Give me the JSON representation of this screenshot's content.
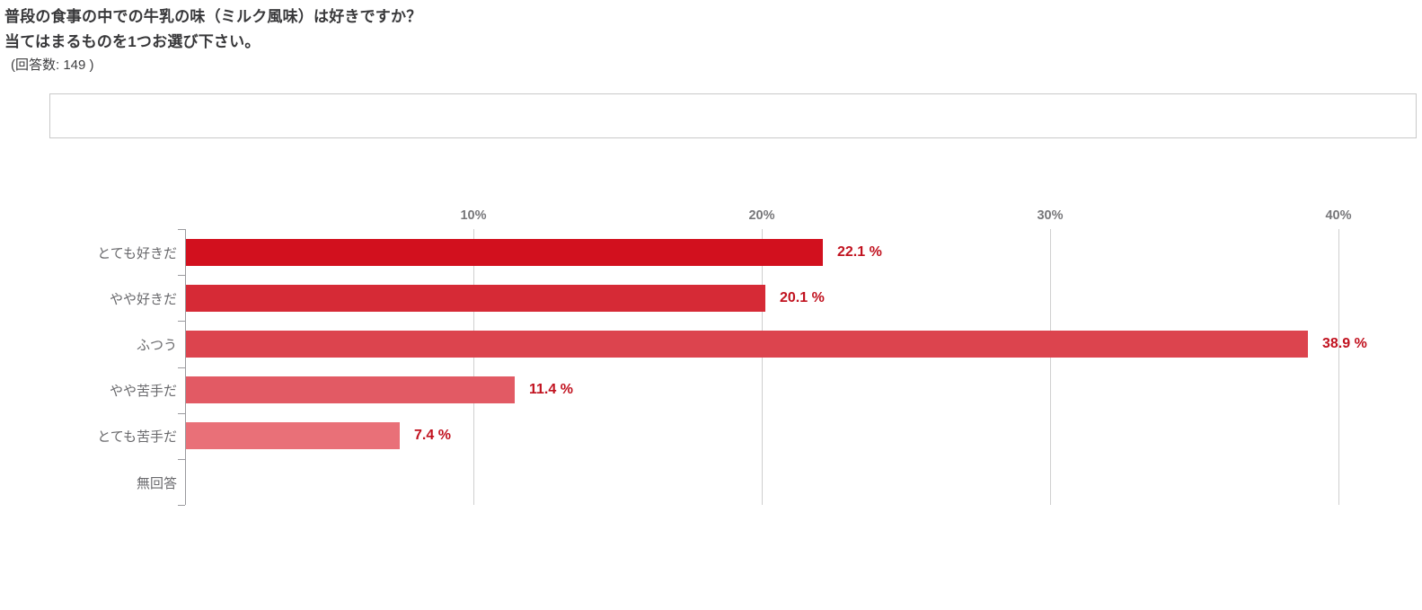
{
  "title": {
    "line1": "普段の食事の中での牛乳の味（ミルク風味）は好きですか？",
    "line2": "当てはまるものを1つお選び下さい。",
    "respondents": "(回答数: 149 )"
  },
  "answer_box": {
    "content": ""
  },
  "chart_data": {
    "type": "bar",
    "orientation": "horizontal",
    "title": "普段の食事の中での牛乳の味（ミルク風味）は好きですか？ 当てはまるものを1つお選び下さい。 (回答数: 149 )",
    "xlabel": "",
    "ylabel": "",
    "categories": [
      "とても好きだ",
      "やや好きだ",
      "ふつう",
      "やや苦手だ",
      "とても苦手だ",
      "無回答"
    ],
    "values": [
      22.1,
      20.1,
      38.9,
      11.4,
      7.4,
      0
    ],
    "value_labels": [
      "22.1 %",
      "20.1 %",
      "38.9 %",
      "11.4 %",
      "7.4 %",
      ""
    ],
    "x_ticks": [
      {
        "value": 10,
        "label": "10%"
      },
      {
        "value": 20,
        "label": "20%"
      },
      {
        "value": 30,
        "label": "30%"
      },
      {
        "value": 40,
        "label": "40%"
      }
    ],
    "xlim": [
      0,
      42.7
    ],
    "grid": true,
    "legend": "none",
    "bar_colors": [
      "#d2101e",
      "#d62a36",
      "#dc444e",
      "#e25a64",
      "#e97078",
      "#ffffff"
    ],
    "value_label_color": "#c1121f"
  },
  "colors": {
    "background": "#ffffff",
    "grid_line": "#cfcfcf",
    "axis_line": "#9a9a9e",
    "tick_label": "#77777a",
    "category_label": "#69696c",
    "title_text": "#38383a",
    "box_border": "#c9c9c9"
  }
}
